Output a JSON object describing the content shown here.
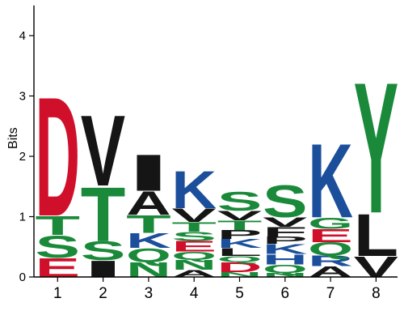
{
  "chart_data": {
    "type": "sequence-logo",
    "title": "",
    "xlabel": "",
    "ylabel": "Bits",
    "ylim": [
      0,
      4.5
    ],
    "yticks": [
      "0",
      "1",
      "2",
      "3",
      "4"
    ],
    "categories": [
      "1",
      "2",
      "3",
      "4",
      "5",
      "6",
      "7",
      "8"
    ],
    "colors": {
      "D": "#d0102b",
      "E": "#d0102b",
      "K": "#1b4f9b",
      "R": "#1b4f9b",
      "H": "#1b4f9b",
      "S": "#1a8a3a",
      "T": "#1a8a3a",
      "Q": "#1a8a3a",
      "N": "#1a8a3a",
      "G": "#1a8a3a",
      "Y": "#1a8a3a",
      "V": "#151515",
      "I": "#151515",
      "L": "#151515",
      "A": "#151515",
      "P": "#151515",
      "F": "#151515"
    },
    "positions": [
      {
        "position": "1",
        "letters": [
          {
            "letter": "E",
            "height": 0.32
          },
          {
            "letter": "S",
            "height": 0.38
          },
          {
            "letter": "T",
            "height": 0.32
          },
          {
            "letter": "D",
            "height": 2.03
          }
        ]
      },
      {
        "position": "2",
        "letters": [
          {
            "letter": "I",
            "height": 0.28
          },
          {
            "letter": "S",
            "height": 0.32
          },
          {
            "letter": "T",
            "height": 0.92
          },
          {
            "letter": "V",
            "height": 1.2
          }
        ]
      },
      {
        "position": "3",
        "letters": [
          {
            "letter": "N",
            "height": 0.25
          },
          {
            "letter": "Q",
            "height": 0.23
          },
          {
            "letter": "K",
            "height": 0.25
          },
          {
            "letter": "T",
            "height": 0.3
          },
          {
            "letter": "A",
            "height": 0.4
          },
          {
            "letter": "I",
            "height": 0.62
          }
        ]
      },
      {
        "position": "4",
        "letters": [
          {
            "letter": "A",
            "height": 0.12
          },
          {
            "letter": "N",
            "height": 0.17
          },
          {
            "letter": "Q",
            "height": 0.13
          },
          {
            "letter": "E",
            "height": 0.18
          },
          {
            "letter": "S",
            "height": 0.15
          },
          {
            "letter": "T",
            "height": 0.16
          },
          {
            "letter": "V",
            "height": 0.23
          },
          {
            "letter": "K",
            "height": 0.64
          }
        ]
      },
      {
        "position": "5",
        "letters": [
          {
            "letter": "N",
            "height": 0.08
          },
          {
            "letter": "D",
            "height": 0.17
          },
          {
            "letter": "Q",
            "height": 0.1
          },
          {
            "letter": "L",
            "height": 0.13
          },
          {
            "letter": "K",
            "height": 0.15
          },
          {
            "letter": "P",
            "height": 0.15
          },
          {
            "letter": "T",
            "height": 0.16
          },
          {
            "letter": "V",
            "height": 0.16
          },
          {
            "letter": "S",
            "height": 0.32
          }
        ]
      },
      {
        "position": "6",
        "letters": [
          {
            "letter": "N",
            "height": 0.07
          },
          {
            "letter": "Q",
            "height": 0.14
          },
          {
            "letter": "H",
            "height": 0.17
          },
          {
            "letter": "K",
            "height": 0.17
          },
          {
            "letter": "P",
            "height": 0.12
          },
          {
            "letter": "F",
            "height": 0.16
          },
          {
            "letter": "V",
            "height": 0.16
          },
          {
            "letter": "S",
            "height": 0.55
          }
        ]
      },
      {
        "position": "7",
        "letters": [
          {
            "letter": "A",
            "height": 0.18
          },
          {
            "letter": "R",
            "height": 0.18
          },
          {
            "letter": "Q",
            "height": 0.22
          },
          {
            "letter": "E",
            "height": 0.22
          },
          {
            "letter": "G",
            "height": 0.19
          },
          {
            "letter": "K",
            "height": 1.26
          }
        ]
      },
      {
        "position": "8",
        "letters": [
          {
            "letter": "V",
            "height": 0.35
          },
          {
            "letter": "L",
            "height": 0.72
          },
          {
            "letter": "Y",
            "height": 2.23
          }
        ]
      }
    ]
  }
}
